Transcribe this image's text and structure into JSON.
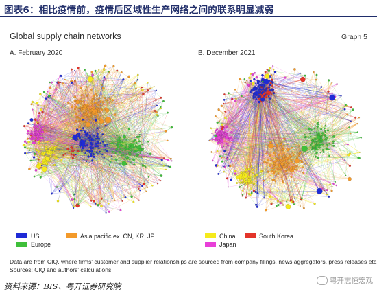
{
  "report": {
    "title": "图表6：相比疫情前，疫情后区域性生产网络之间的联系明显减弱",
    "source": "资料来源：BIS、粤开证券研究院",
    "watermark": "粤开志恒宏观"
  },
  "figure": {
    "title": "Global supply chain networks",
    "number": "Graph 5",
    "panels": [
      {
        "label": "A. February 2020"
      },
      {
        "label": "B. December 2021"
      }
    ],
    "legend_a": [
      {
        "label": "US",
        "color": "#1f2bd6"
      },
      {
        "label": "Europe",
        "color": "#3fbf3a"
      },
      {
        "label": "Asia pacific ex. CN, KR, JP",
        "color": "#f39a2b"
      }
    ],
    "legend_b": [
      {
        "label": "China",
        "color": "#f5ea1c"
      },
      {
        "label": "South Korea",
        "color": "#e3342a"
      },
      {
        "label": "Japan",
        "color": "#e83fd8"
      }
    ],
    "note": "Data are from CIQ, where firms' customer and supplier relationships are sourced from company filings, news aggregators, press releases etc.",
    "sources": "Sources: CIQ and authors' calculations."
  }
}
